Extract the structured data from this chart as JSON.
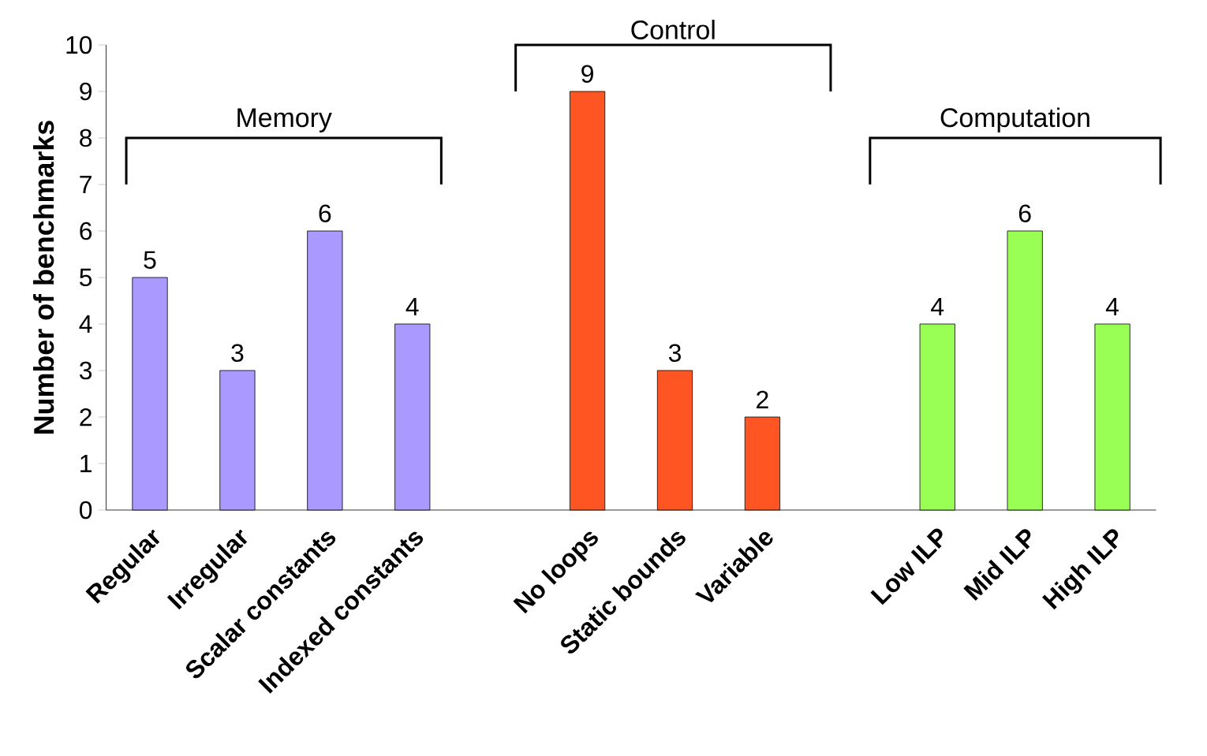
{
  "chart_data": {
    "type": "bar",
    "ylabel": "Number of benchmarks",
    "categories": [
      "Regular",
      "Irregular",
      "Scalar constants",
      "Indexed constants",
      null,
      "No loops",
      "Static bounds",
      "Variable",
      null,
      "Low ILP",
      "Mid ILP",
      "High ILP"
    ],
    "values": [
      5,
      3,
      6,
      4,
      null,
      9,
      3,
      2,
      null,
      4,
      6,
      4
    ],
    "colors": [
      "#aa99ff",
      "#aa99ff",
      "#aa99ff",
      "#aa99ff",
      null,
      "#ff5522",
      "#ff5522",
      "#ff5522",
      null,
      "#99ff55",
      "#99ff55",
      "#99ff55"
    ],
    "ylim": [
      0,
      10
    ],
    "yticks": [
      0,
      1,
      2,
      3,
      4,
      5,
      6,
      7,
      8,
      9,
      10
    ],
    "data_labels": true,
    "annotations": [
      "Memory",
      "Control",
      "Computation"
    ]
  }
}
